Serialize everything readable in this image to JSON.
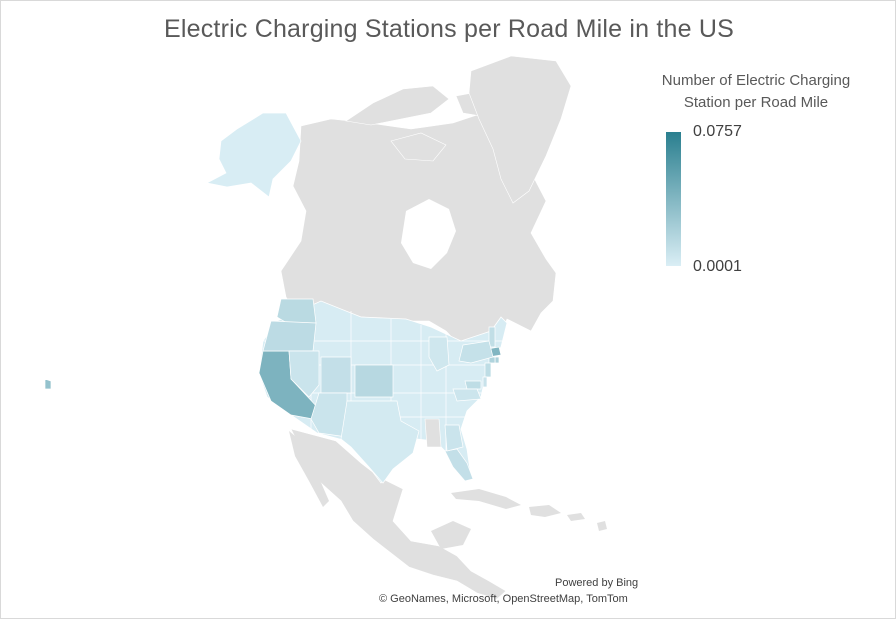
{
  "chart_data": {
    "type": "choropleth-map",
    "title": "Electric Charging Stations per Road Mile in the US",
    "legend": {
      "title": "Number of Electric Charging Station per Road Mile",
      "max_label": "0.0757",
      "min_label": "0.0001",
      "min_value": 0.0001,
      "max_value": 0.0757,
      "color_low": "#daeef5",
      "color_high": "#2a7f8f",
      "placement": "top-right"
    },
    "no_data_color": "#e0e0e0",
    "regions": [
      {
        "name": "California",
        "value": 0.04
      },
      {
        "name": "Hawaii",
        "value": 0.03
      },
      {
        "name": "Massachusetts",
        "value": 0.038
      },
      {
        "name": "Rhode Island",
        "value": 0.02
      },
      {
        "name": "Connecticut",
        "value": 0.018
      },
      {
        "name": "New Jersey",
        "value": 0.012
      },
      {
        "name": "Colorado",
        "value": 0.015
      },
      {
        "name": "Washington",
        "value": 0.014
      },
      {
        "name": "Oregon",
        "value": 0.013
      },
      {
        "name": "Maryland",
        "value": 0.012
      },
      {
        "name": "Vermont",
        "value": 0.011
      },
      {
        "name": "Florida",
        "value": 0.01
      },
      {
        "name": "Utah",
        "value": 0.01
      },
      {
        "name": "New York",
        "value": 0.009
      },
      {
        "name": "Delaware",
        "value": 0.008
      },
      {
        "name": "Arizona",
        "value": 0.007
      },
      {
        "name": "Georgia",
        "value": 0.007
      },
      {
        "name": "Nevada",
        "value": 0.007
      },
      {
        "name": "Virginia",
        "value": 0.006
      },
      {
        "name": "Michigan",
        "value": 0.005
      },
      {
        "name": "Texas",
        "value": 0.003
      },
      {
        "name": "Alaska",
        "value": 0.001
      }
    ]
  },
  "attribution": {
    "powered_by": "Powered by Bing",
    "copyright": "© GeoNames, Microsoft, OpenStreetMap, TomTom"
  }
}
